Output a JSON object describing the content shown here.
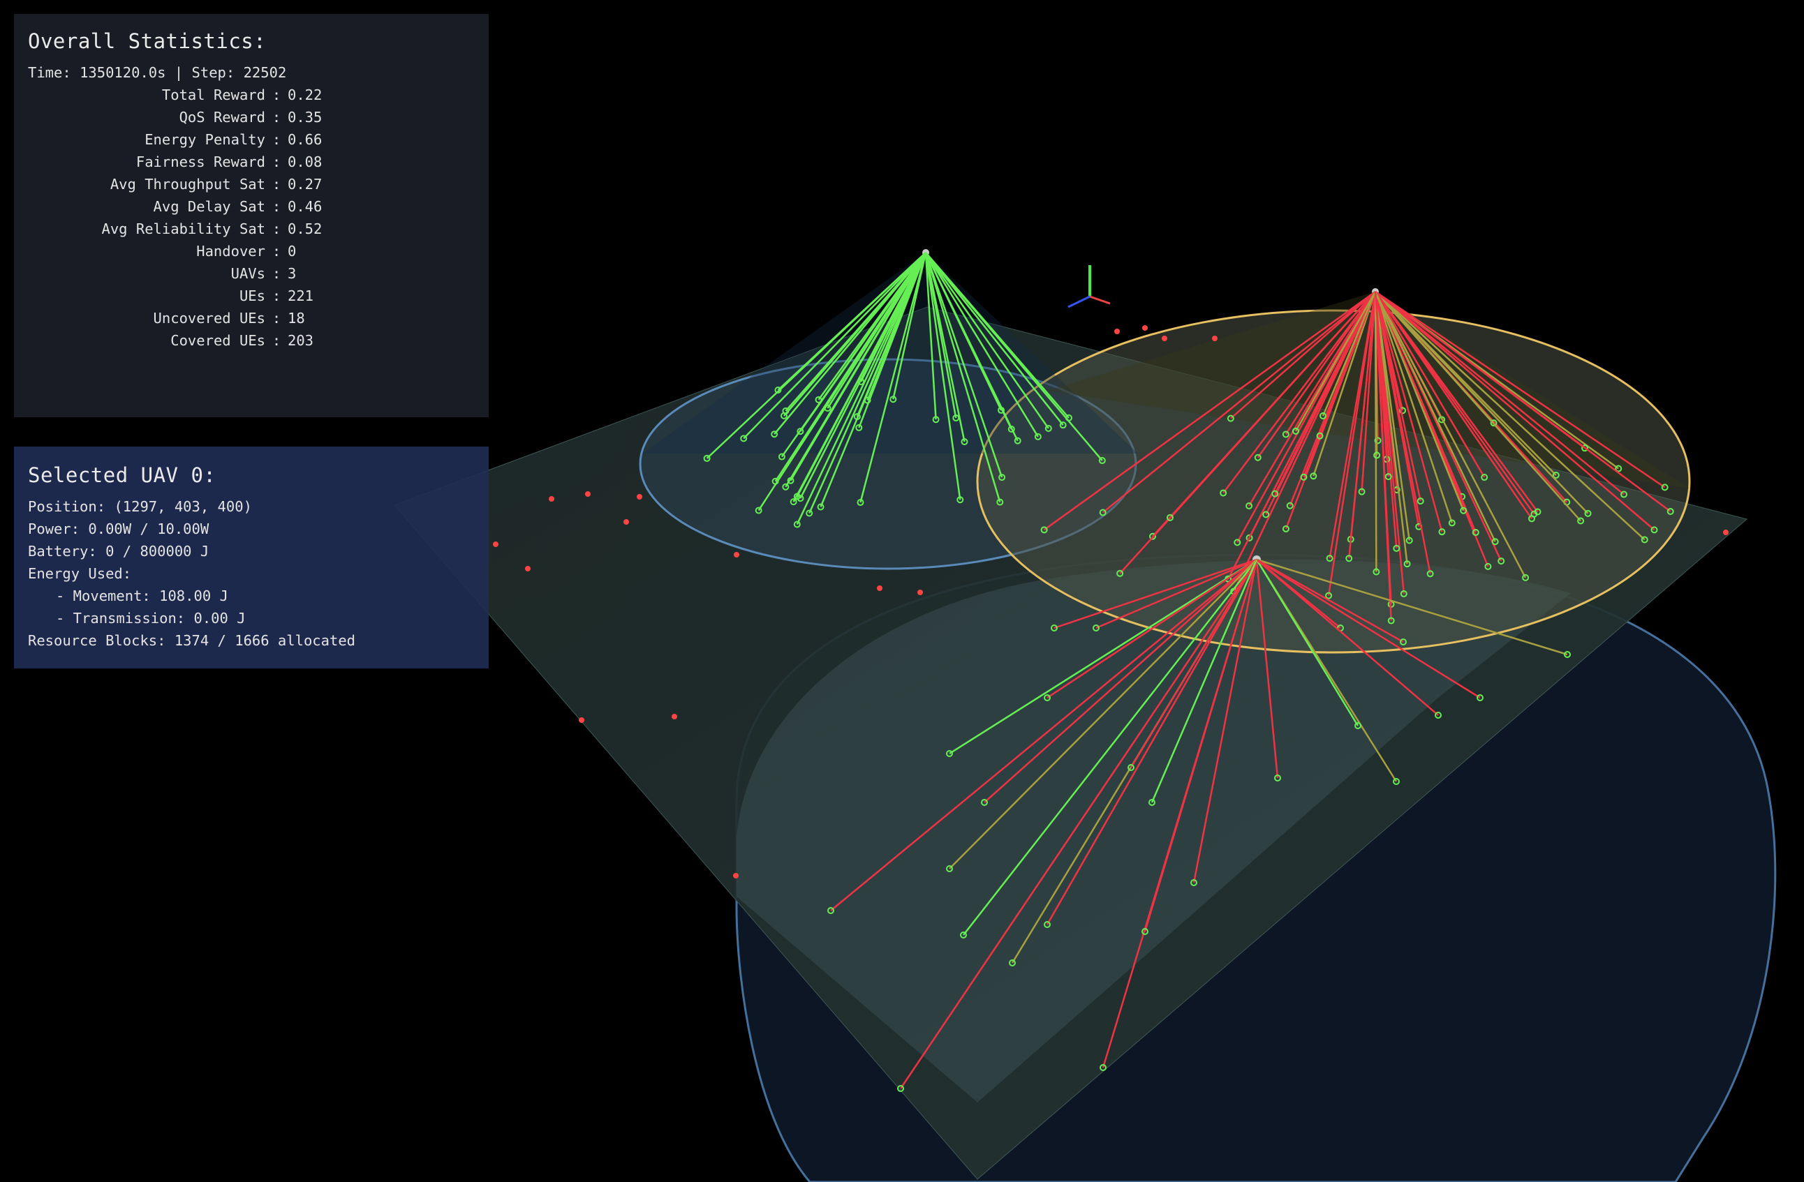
{
  "stats": {
    "title": "Overall Statistics:",
    "time_label": "Time:",
    "time_value": "1350120.0s",
    "step_label": "Step:",
    "step_value": "22502",
    "rows": [
      {
        "label": "Total Reward",
        "value": "0.22"
      },
      {
        "label": "QoS Reward",
        "value": "0.35"
      },
      {
        "label": "Energy Penalty",
        "value": "0.66"
      },
      {
        "label": "Fairness Reward",
        "value": "0.08"
      },
      {
        "label": "Avg Throughput Sat",
        "value": "0.27"
      },
      {
        "label": "Avg Delay Sat",
        "value": "0.46"
      },
      {
        "label": "Avg Reliability Sat",
        "value": "0.52"
      },
      {
        "label": "Handover",
        "value": "0"
      },
      {
        "label": "UAVs",
        "value": "3"
      },
      {
        "label": "UEs",
        "value": "221"
      },
      {
        "label": "Uncovered UEs",
        "value": "18"
      },
      {
        "label": "Covered UEs",
        "value": "203"
      }
    ]
  },
  "selected_uav": {
    "title": "Selected UAV 0:",
    "position_label": "Position:",
    "position_value": "(1297, 403, 400)",
    "power_label": "Power:",
    "power_value": "0.00W / 10.00W",
    "battery_label": "Battery:",
    "battery_value": "0 / 800000 J",
    "energy_label": "Energy Used:",
    "movement_label": "- Movement:",
    "movement_value": "108.00 J",
    "transmission_label": "- Transmission:",
    "transmission_value": "0.00 J",
    "rb_label": "Resource Blocks:",
    "rb_value": "1374 / 1666 allocated"
  },
  "colors": {
    "background": "#000000",
    "ground_plane": "#2a3a38",
    "link_good": "#66ee55",
    "link_bad": "#ee3344",
    "link_mid": "#a8a040",
    "coverage_blue": "#5a8ab8",
    "coverage_yellow": "#e6c060",
    "ue_uncovered": "#ff4444",
    "ue_covered": "#66ee55"
  },
  "icons": {
    "axis_gizmo": "xyz-axes-icon"
  }
}
